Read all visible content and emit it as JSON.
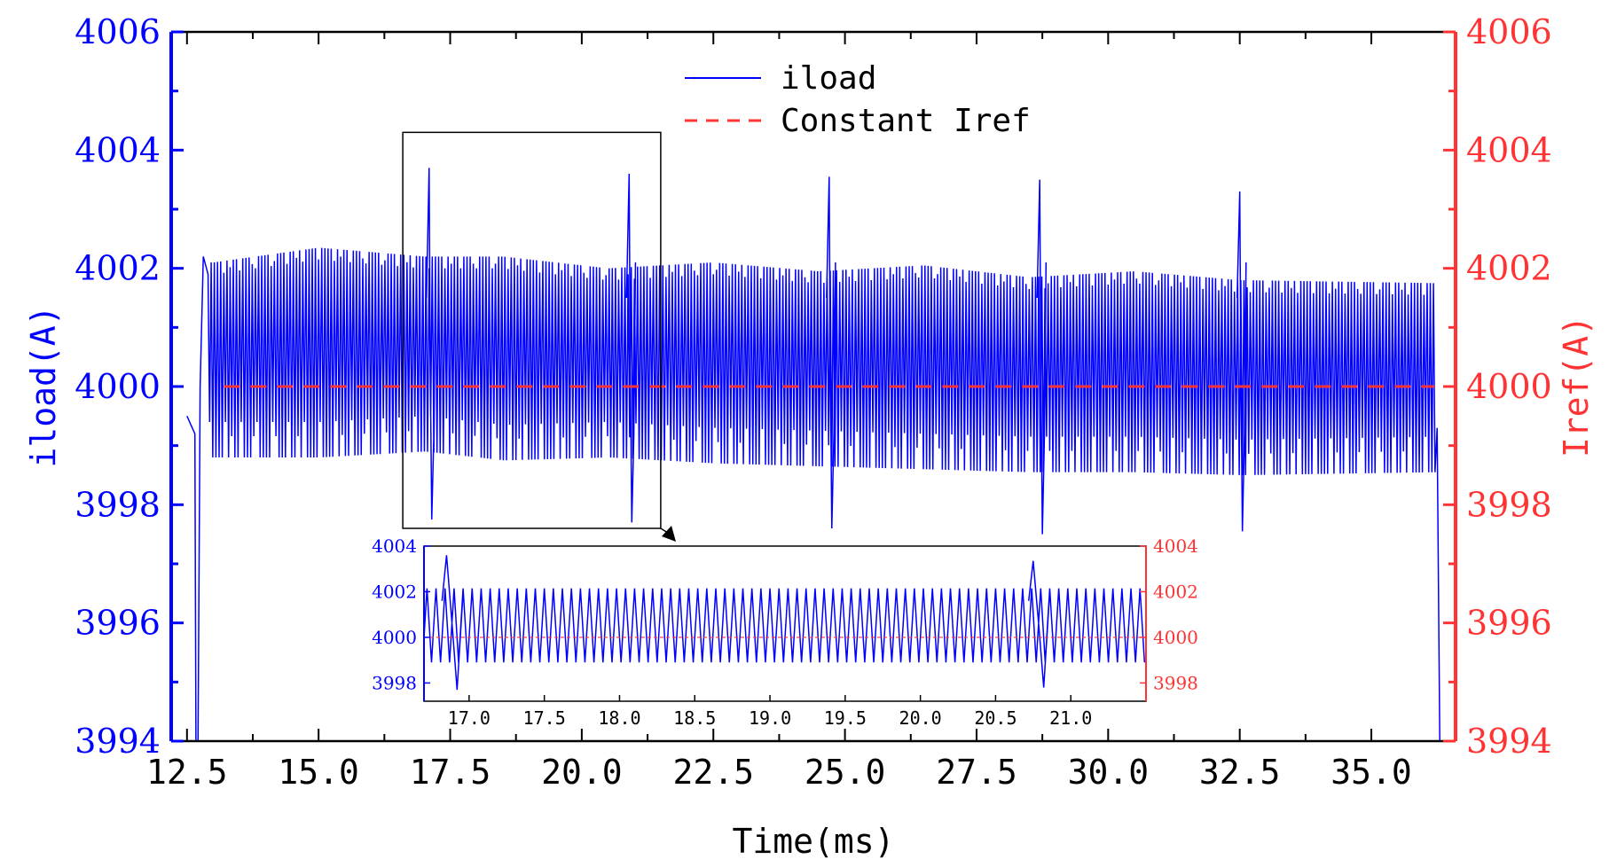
{
  "chart_data": {
    "type": "line",
    "xlabel": "Time(ms)",
    "ylabel_left": "iload(A)",
    "ylabel_right": "Iref(A)",
    "xlim": [
      12.2,
      36.6
    ],
    "ylim": [
      3994,
      4006
    ],
    "x_ticks": [
      "12.5",
      "15.0",
      "17.5",
      "20.0",
      "22.5",
      "25.0",
      "27.5",
      "30.0",
      "32.5",
      "35.0"
    ],
    "x_tick_values": [
      12.5,
      15.0,
      17.5,
      20.0,
      22.5,
      25.0,
      27.5,
      30.0,
      32.5,
      35.0
    ],
    "y_ticks": [
      "3994",
      "3996",
      "3998",
      "4000",
      "4002",
      "4004",
      "4006"
    ],
    "y_tick_values": [
      3994,
      3996,
      3998,
      4000,
      4002,
      4004,
      4006
    ],
    "grid": false,
    "legend_position": "top-center",
    "colors": {
      "iload": "#0000ff",
      "iref": "#ff3333",
      "frame": "#000000"
    },
    "series": [
      {
        "name": "iload",
        "style": "solid",
        "start": 12.5,
        "end": 36.3,
        "ripple_period_ms": 0.06,
        "envelope_max": [
          [
            13.0,
            4002.1
          ],
          [
            15.0,
            4002.35
          ],
          [
            17.0,
            4002.2
          ],
          [
            18.5,
            4002.2
          ],
          [
            20.5,
            4002.0
          ],
          [
            22.5,
            4002.1
          ],
          [
            24.5,
            4001.95
          ],
          [
            26.5,
            4002.05
          ],
          [
            28.5,
            4001.85
          ],
          [
            30.5,
            4001.95
          ],
          [
            32.5,
            4001.8
          ],
          [
            36.2,
            4001.75
          ]
        ],
        "envelope_min": [
          [
            13.0,
            3998.8
          ],
          [
            15.0,
            3998.8
          ],
          [
            17.0,
            3998.9
          ],
          [
            18.5,
            3998.75
          ],
          [
            20.5,
            3998.8
          ],
          [
            22.5,
            3998.7
          ],
          [
            24.5,
            3998.65
          ],
          [
            26.5,
            3998.6
          ],
          [
            28.5,
            3998.55
          ],
          [
            30.5,
            3998.55
          ],
          [
            32.5,
            3998.5
          ],
          [
            36.2,
            3998.55
          ]
        ],
        "spikes": [
          {
            "t": 17.1,
            "max": 4003.7,
            "min": 3997.75
          },
          {
            "t": 20.9,
            "max": 4003.6,
            "min": 3997.7
          },
          {
            "t": 24.7,
            "max": 4003.55,
            "min": 3997.6
          },
          {
            "t": 28.7,
            "max": 4003.5,
            "min": 3997.5
          },
          {
            "t": 32.5,
            "max": 4003.3,
            "min": 3997.55
          }
        ],
        "edge_drops": [
          {
            "t": 12.65,
            "min": 3994
          },
          {
            "t": 36.3,
            "min": 3994
          }
        ]
      },
      {
        "name": "Constant Iref",
        "style": "dashed",
        "x": [
          13.2,
          36.2
        ],
        "y": [
          4000,
          4000
        ]
      }
    ],
    "inset": {
      "source_box_x": [
        16.6,
        21.5
      ],
      "source_box_y": [
        3997.6,
        4004.3
      ],
      "xlim": [
        16.7,
        21.5
      ],
      "ylim": [
        3997.2,
        4004
      ],
      "x_ticks": [
        "17.0",
        "17.5",
        "18.0",
        "18.5",
        "19.0",
        "19.5",
        "20.0",
        "20.5",
        "21.0"
      ],
      "x_tick_values": [
        17.0,
        17.5,
        18.0,
        18.5,
        19.0,
        19.5,
        20.0,
        20.5,
        21.0
      ],
      "y_ticks": [
        "3998",
        "4000",
        "4002",
        "4004"
      ],
      "y_tick_values": [
        3998,
        4000,
        4002,
        4004
      ],
      "ripple_period_ms": 0.06,
      "ripple_max": 4002.15,
      "ripple_min": 3998.9,
      "spikes": [
        {
          "t": 16.85,
          "max": 4003.6,
          "min": 3997.7
        },
        {
          "t": 20.75,
          "max": 4003.35,
          "min": 3997.8
        }
      ]
    }
  }
}
